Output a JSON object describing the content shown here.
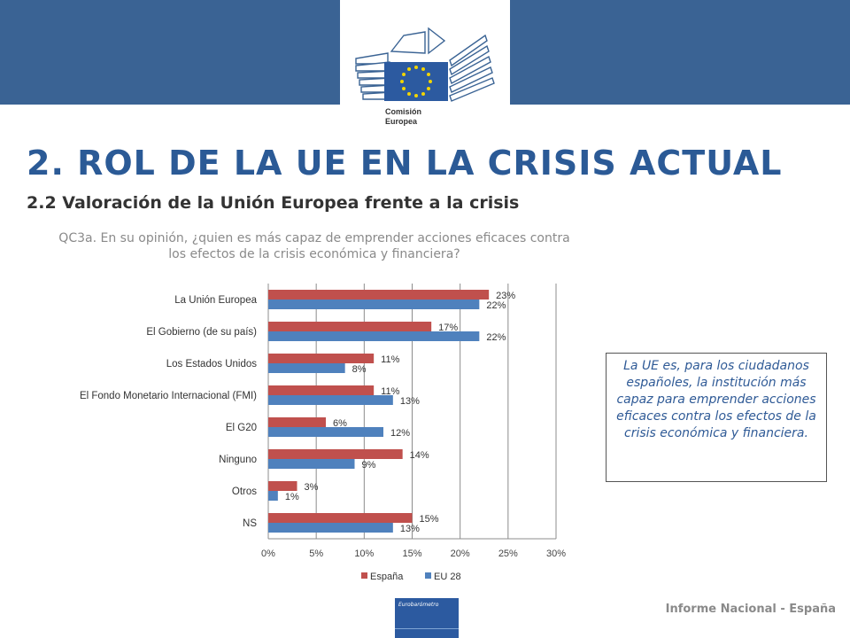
{
  "header": {
    "logo_line1": "Comisión",
    "logo_line2": "Europea"
  },
  "title": "2. ROL DE LA UE EN LA CRISIS ACTUAL",
  "subtitle": "2.2 Valoración  de la Unión Europea frente a la crisis",
  "question": "QC3a. En su opinión, ¿quien es más capaz de emprender acciones eficaces contra los efectos de la crisis económica y financiera?",
  "callout": "La UE es, para los ciudadanos españoles, la institución más capaz para emprender acciones eficaces contra los efectos de la crisis económica y financiera.",
  "footer": {
    "report": "Informe Nacional - España",
    "badge": "Eurobarómetro"
  },
  "colors": {
    "header_bar": "#3a6394",
    "title": "#2b5a96",
    "espana": "#c0504d",
    "eu28": "#4f81bd"
  },
  "chart_data": {
    "type": "bar",
    "orientation": "horizontal",
    "categories": [
      "La Unión Europea",
      "El Gobierno (de su país)",
      "Los Estados Unidos",
      "El Fondo Monetario Internacional (FMI)",
      "El G20",
      "Ninguno",
      "Otros",
      "NS"
    ],
    "series": [
      {
        "name": "España",
        "values": [
          23,
          17,
          11,
          11,
          6,
          14,
          3,
          15
        ],
        "color": "#c0504d"
      },
      {
        "name": "EU 28",
        "values": [
          22,
          22,
          8,
          13,
          12,
          9,
          1,
          13
        ],
        "color": "#4f81bd"
      }
    ],
    "xlim": [
      0,
      30
    ],
    "xticks": [
      "0%",
      "5%",
      "10%",
      "15%",
      "20%",
      "25%",
      "30%"
    ],
    "value_suffix": "%",
    "grid": true,
    "legend": "bottom"
  }
}
